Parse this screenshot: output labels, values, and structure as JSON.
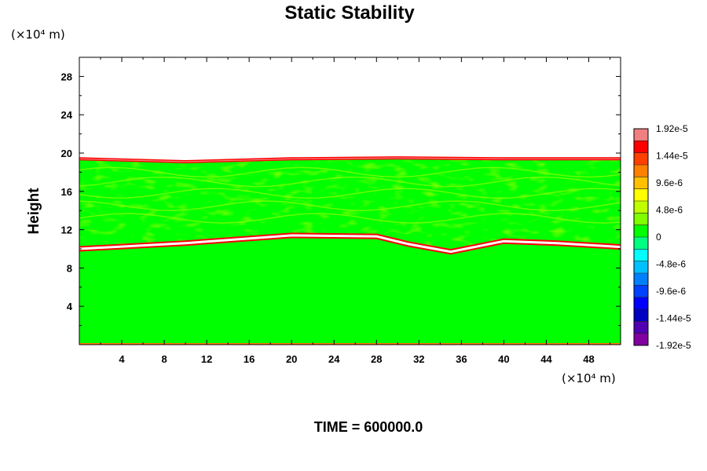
{
  "chart_data": {
    "type": "heatmap",
    "title": "Static Stability",
    "ylabel": "Height",
    "xlabel": "",
    "x_unit_label": "(×10⁴ m)",
    "y_unit_label": "(×10⁴ m)",
    "time_label": "TIME = 600000.0",
    "xlim": [
      0,
      51
    ],
    "ylim": [
      0,
      30
    ],
    "x_ticks": [
      4,
      8,
      12,
      16,
      20,
      24,
      28,
      32,
      36,
      40,
      44,
      48
    ],
    "x_tick_labels": [
      "4",
      "8",
      "12",
      "16",
      "20",
      "24",
      "28",
      "32",
      "36",
      "40",
      "44",
      "48"
    ],
    "y_ticks": [
      4,
      8,
      12,
      16,
      20,
      24,
      28
    ],
    "y_tick_labels": [
      "4",
      "8",
      "12",
      "16",
      "20",
      "24",
      "28"
    ],
    "colorbar": {
      "range": [
        -1.92e-05,
        1.92e-05
      ],
      "ticks": [
        1.92e-05,
        1.44e-05,
        9.6e-06,
        4.8e-06,
        0,
        -4.8e-06,
        -9.6e-06,
        -1.44e-05,
        -1.92e-05
      ],
      "tick_labels": [
        "1.92e-5",
        "1.44e-5",
        "9.6e-6",
        "4.8e-6",
        "0",
        "-4.8e-6",
        "-9.6e-6",
        "-1.44e-5",
        "-1.92e-5"
      ],
      "colors": [
        "#f08080",
        "#ff0000",
        "#ff4000",
        "#ff8000",
        "#ffc000",
        "#ffff00",
        "#c0ff00",
        "#80ff00",
        "#00ff00",
        "#00ff80",
        "#00ffff",
        "#00c0ff",
        "#0080ff",
        "#0040ff",
        "#0000ff",
        "#0000c0",
        "#5000b0",
        "#8000a0"
      ]
    },
    "field_features": {
      "top_boundary_height": [
        [
          0,
          19.4
        ],
        [
          10,
          19.1
        ],
        [
          20,
          19.4
        ],
        [
          30,
          19.5
        ],
        [
          40,
          19.4
        ],
        [
          51,
          19.4
        ]
      ],
      "lower_stable_layer_height": [
        [
          0,
          10.0
        ],
        [
          10,
          10.6
        ],
        [
          20,
          11.4
        ],
        [
          28,
          11.3
        ],
        [
          31,
          10.5
        ],
        [
          35,
          9.7
        ],
        [
          40,
          10.8
        ],
        [
          45,
          10.6
        ],
        [
          51,
          10.2
        ]
      ],
      "region_above_top_value": "none",
      "region_below_layer_value": 0
    }
  }
}
